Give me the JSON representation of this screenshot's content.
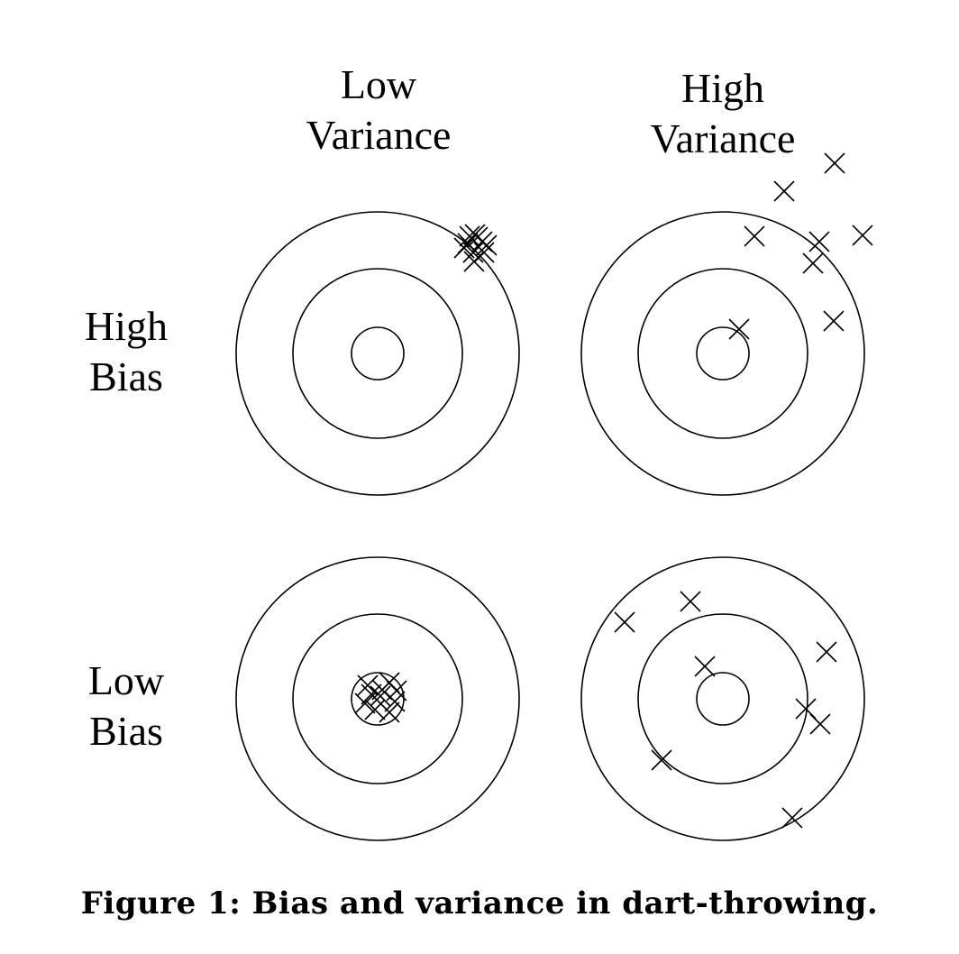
{
  "columns": [
    {
      "line1": "Low",
      "line2": "Variance"
    },
    {
      "line1": "High",
      "line2": "Variance"
    }
  ],
  "rows": [
    {
      "line1": "High",
      "line2": "Bias"
    },
    {
      "line1": "Low",
      "line2": "Bias"
    }
  ],
  "targets": [
    {
      "id": "high-bias-low-variance",
      "darts": 10
    },
    {
      "id": "high-bias-high-variance",
      "darts": 8
    },
    {
      "id": "low-bias-low-variance",
      "darts": 10
    },
    {
      "id": "low-bias-high-variance",
      "darts": 9
    }
  ],
  "caption": "Figure 1: Bias and variance in dart-throwing.",
  "colors": {
    "ink": "#000000",
    "background": "#ffffff"
  }
}
